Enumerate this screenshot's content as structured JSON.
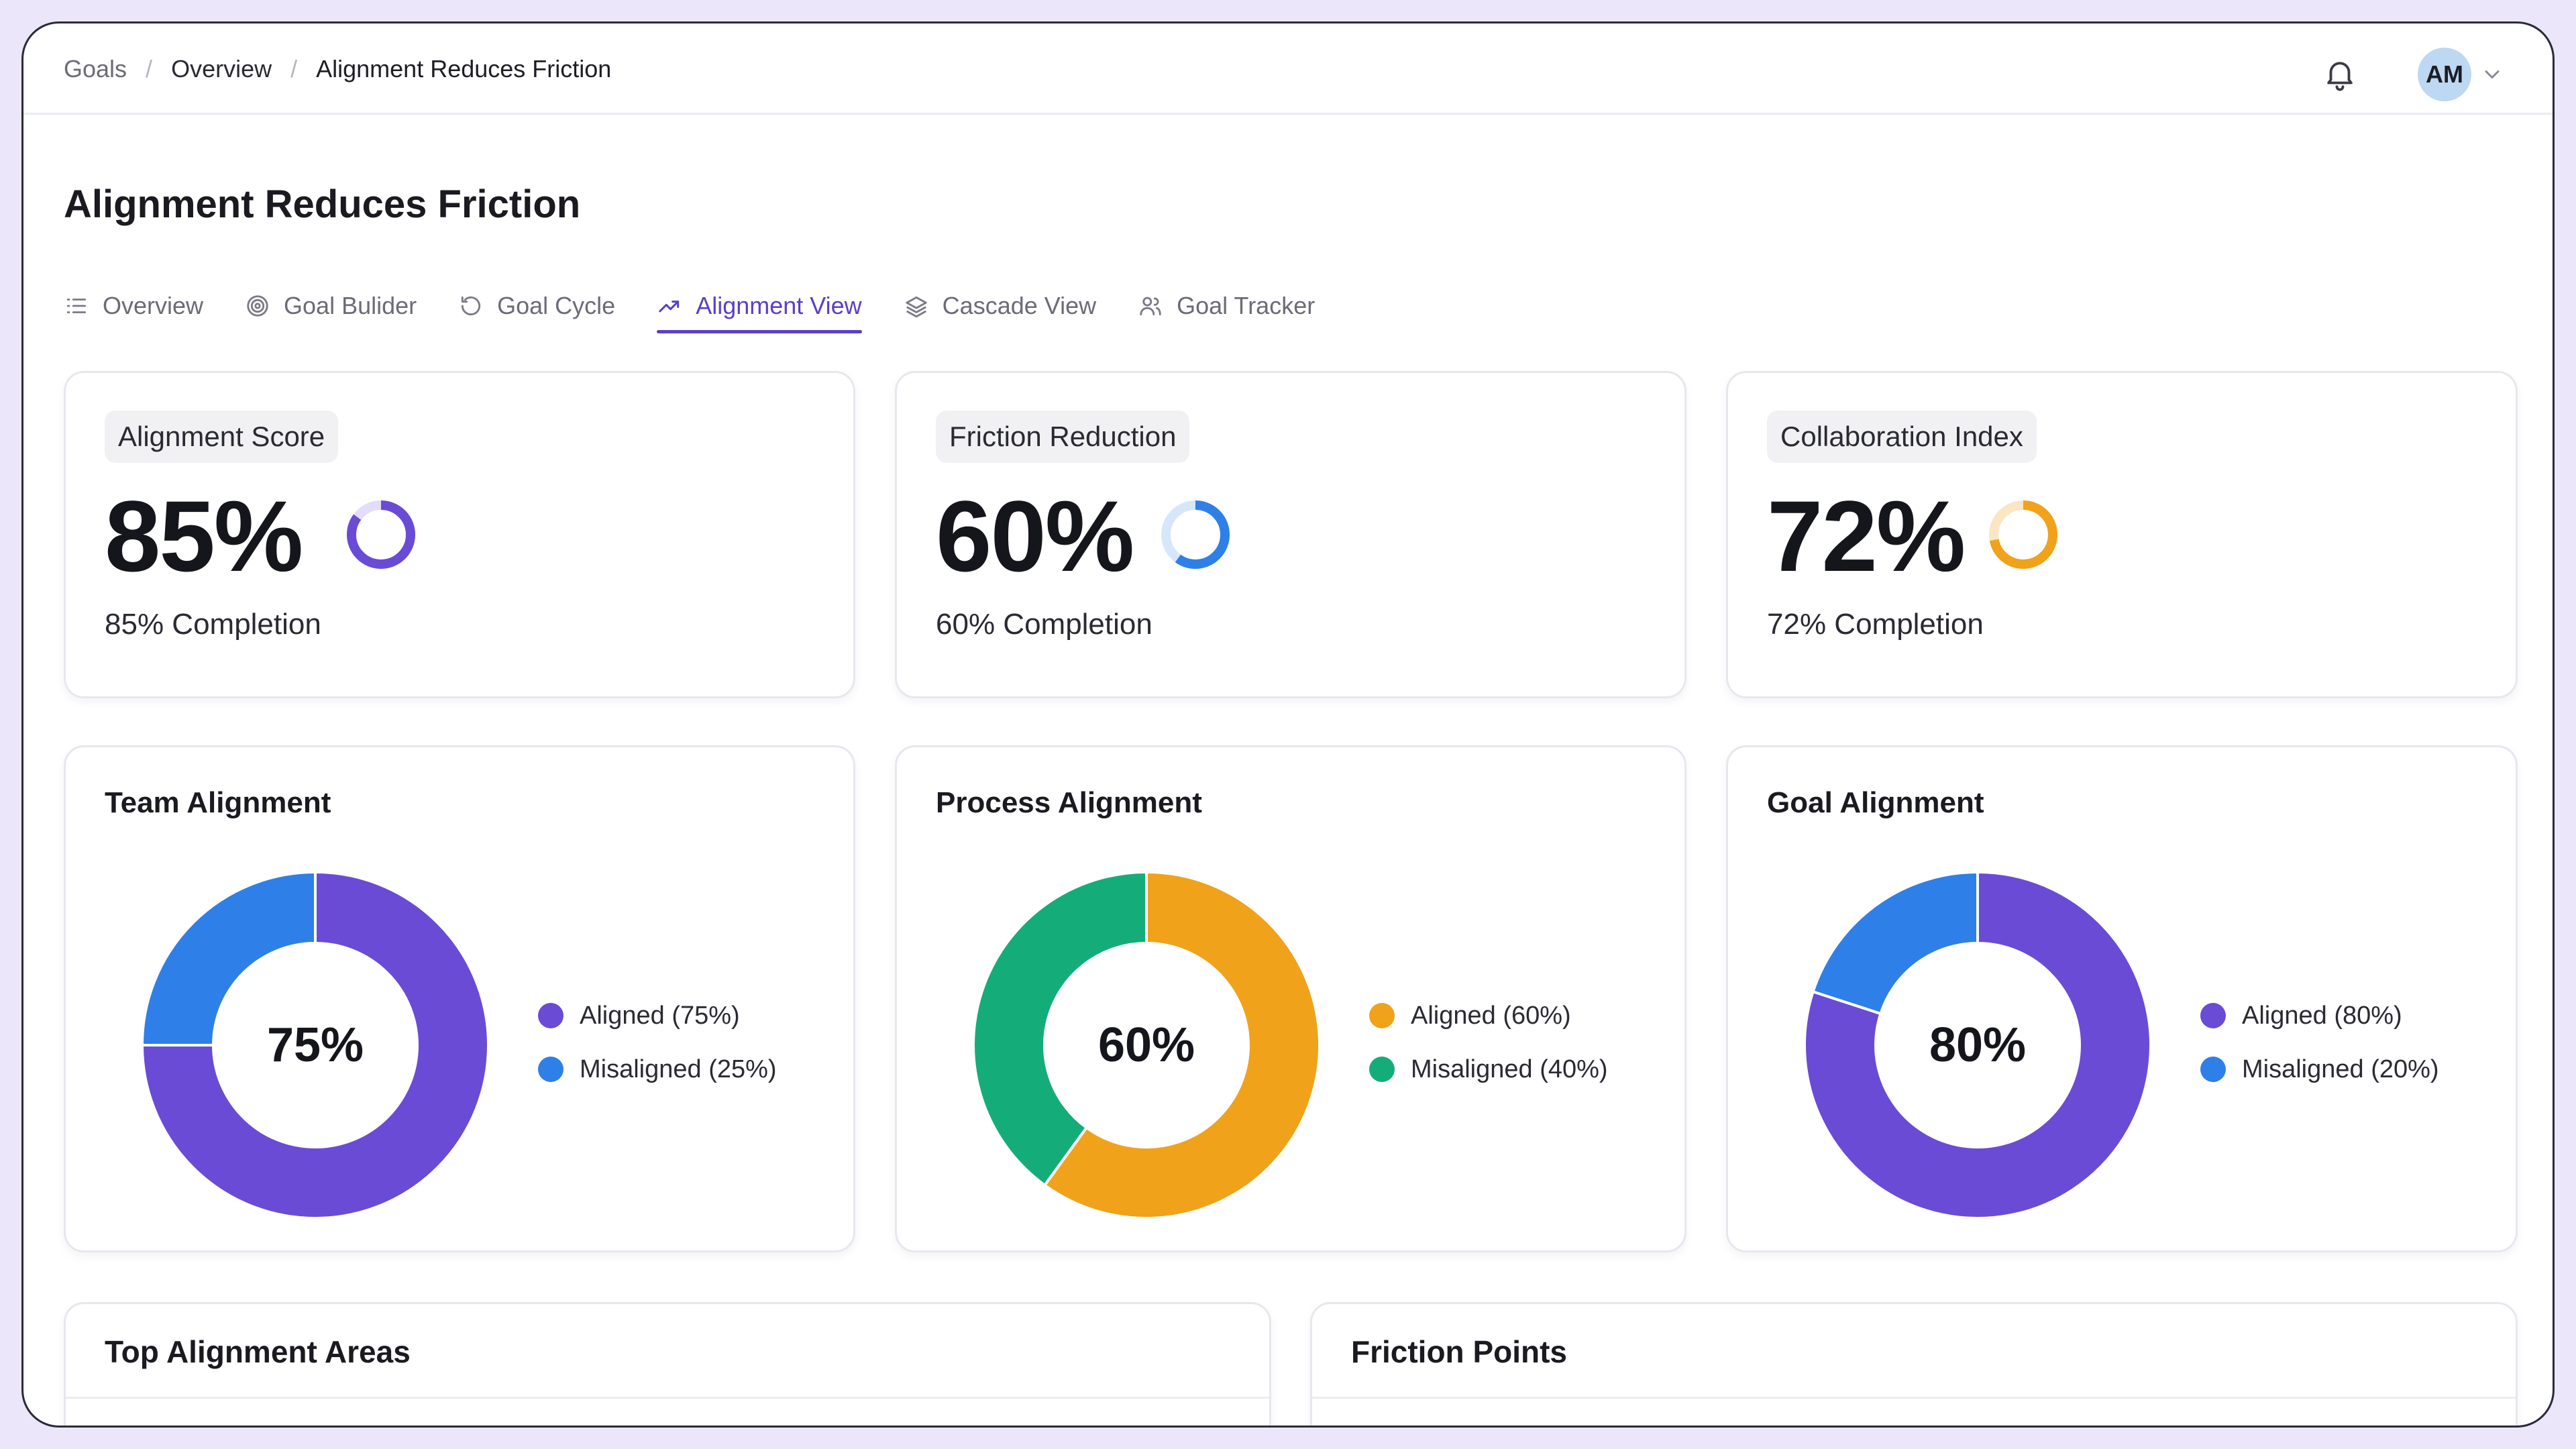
{
  "breadcrumb": [
    "Goals",
    "Overview",
    "Alignment Reduces Friction"
  ],
  "user": {
    "initials": "AM"
  },
  "page": {
    "title": "Alignment Reduces Friction"
  },
  "tabs": [
    {
      "label": "Overview",
      "icon": "list-icon",
      "active": false
    },
    {
      "label": "Goal Bulider",
      "icon": "target-icon",
      "active": false
    },
    {
      "label": "Goal Cycle",
      "icon": "refresh-icon",
      "active": false
    },
    {
      "label": "Alignment View",
      "icon": "trend-icon",
      "active": true
    },
    {
      "label": "Cascade View",
      "icon": "layers-icon",
      "active": false
    },
    {
      "label": "Goal Tracker",
      "icon": "users-icon",
      "active": false
    }
  ],
  "metrics": [
    {
      "label": "Alignment Score",
      "value": "85%",
      "percent": 85,
      "sub": "85% Completion",
      "color": "#6a4bd6",
      "track": "#e3dcfa"
    },
    {
      "label": "Friction Reduction",
      "value": "60%",
      "percent": 60,
      "sub": "60% Completion",
      "color": "#2f7fe8",
      "track": "#d7e7fb"
    },
    {
      "label": "Collaboration Index",
      "value": "72%",
      "percent": 72,
      "sub": "72% Completion",
      "color": "#f0a21a",
      "track": "#fbe6c4"
    }
  ],
  "chart_data": [
    {
      "type": "pie",
      "title": "Team Alignment",
      "center_label": "75%",
      "categories": [
        "Aligned (75%)",
        "Misaligned (25%)"
      ],
      "values": [
        75,
        25
      ],
      "colors": [
        "#6a4bd6",
        "#2f7fe8"
      ]
    },
    {
      "type": "pie",
      "title": "Process Alignment",
      "center_label": "60%",
      "categories": [
        "Aligned (60%)",
        "Misaligned (40%)"
      ],
      "values": [
        60,
        40
      ],
      "colors": [
        "#f0a21a",
        "#14ad7a"
      ]
    },
    {
      "type": "pie",
      "title": "Goal Alignment",
      "center_label": "80%",
      "categories": [
        "Aligned (80%)",
        "Misaligned (20%)"
      ],
      "values": [
        80,
        20
      ],
      "colors": [
        "#6a4bd6",
        "#2f7fe8"
      ]
    }
  ],
  "sections": {
    "top_alignment": {
      "title": "Top Alignment Areas"
    },
    "friction_points": {
      "title": "Friction Points"
    }
  }
}
